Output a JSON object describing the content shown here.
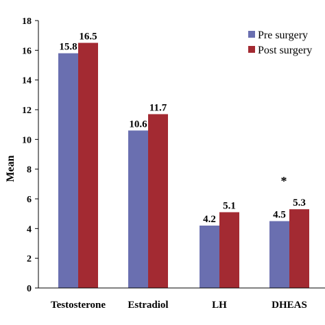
{
  "chart_data": {
    "type": "bar",
    "title": "",
    "xlabel": "",
    "ylabel": "Mean",
    "ylim": [
      0,
      18
    ],
    "yticks": [
      "0",
      "2",
      "4",
      "6",
      "8",
      "10",
      "12",
      "14",
      "16",
      "18"
    ],
    "categories": [
      "Testosterone",
      "Estradiol",
      "LH",
      "DHEAS"
    ],
    "series": [
      {
        "name": "Pre surgery",
        "color": "#6A6FB0",
        "values": [
          15.8,
          10.6,
          4.2,
          4.5
        ],
        "labels": [
          "15.8",
          "10.6",
          "4.2",
          "4.5"
        ]
      },
      {
        "name": "Post surgery",
        "color": "#A32A32",
        "values": [
          16.5,
          11.7,
          5.1,
          5.3
        ],
        "labels": [
          "16.5",
          "11.7",
          "5.1",
          "5.3"
        ]
      }
    ],
    "annotations": [
      {
        "text": "*",
        "category": "DHEAS"
      }
    ],
    "legend_position": "top-right",
    "grid": false
  }
}
